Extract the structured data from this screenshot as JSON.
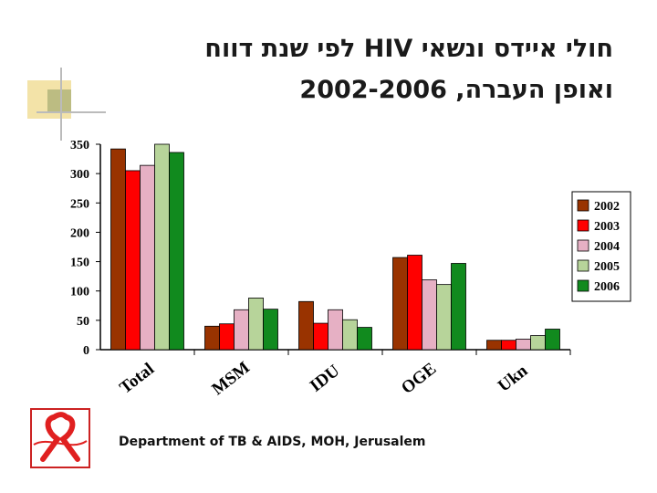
{
  "header": {
    "title_line1": "חולי איידס ונשאי HIV לפי שנת דווח",
    "title_line2": "ואופן העברה, 2002-2006"
  },
  "footer": {
    "credit": "Department of TB & AIDS, MOH, Jerusalem"
  },
  "colors": {
    "2002": "#993300",
    "2003": "#ff0000",
    "2004": "#e6b0c4",
    "2005": "#b7d49a",
    "2006": "#118a1e",
    "accent_yellow": "#f0e0a0",
    "accent_olive": "#b8b87a",
    "logo_red": "#e02020"
  },
  "icons": {
    "logo": "red-ribbon-icon"
  },
  "chart_data": {
    "type": "bar",
    "categories": [
      "Total",
      "MSM",
      "IDU",
      "OGE",
      "Ukn"
    ],
    "series": [
      {
        "name": "2002",
        "values": [
          342,
          40,
          82,
          157,
          16
        ]
      },
      {
        "name": "2003",
        "values": [
          305,
          44,
          45,
          161,
          16
        ]
      },
      {
        "name": "2004",
        "values": [
          314,
          68,
          68,
          119,
          18
        ]
      },
      {
        "name": "2005",
        "values": [
          350,
          88,
          51,
          111,
          24
        ]
      },
      {
        "name": "2006",
        "values": [
          336,
          69,
          38,
          147,
          35
        ]
      }
    ],
    "yticks": [
      0,
      50,
      100,
      150,
      200,
      250,
      300,
      350
    ],
    "ylim": [
      0,
      350
    ],
    "grid": false,
    "legend_position": "right",
    "title": "",
    "xlabel": "",
    "ylabel": ""
  }
}
